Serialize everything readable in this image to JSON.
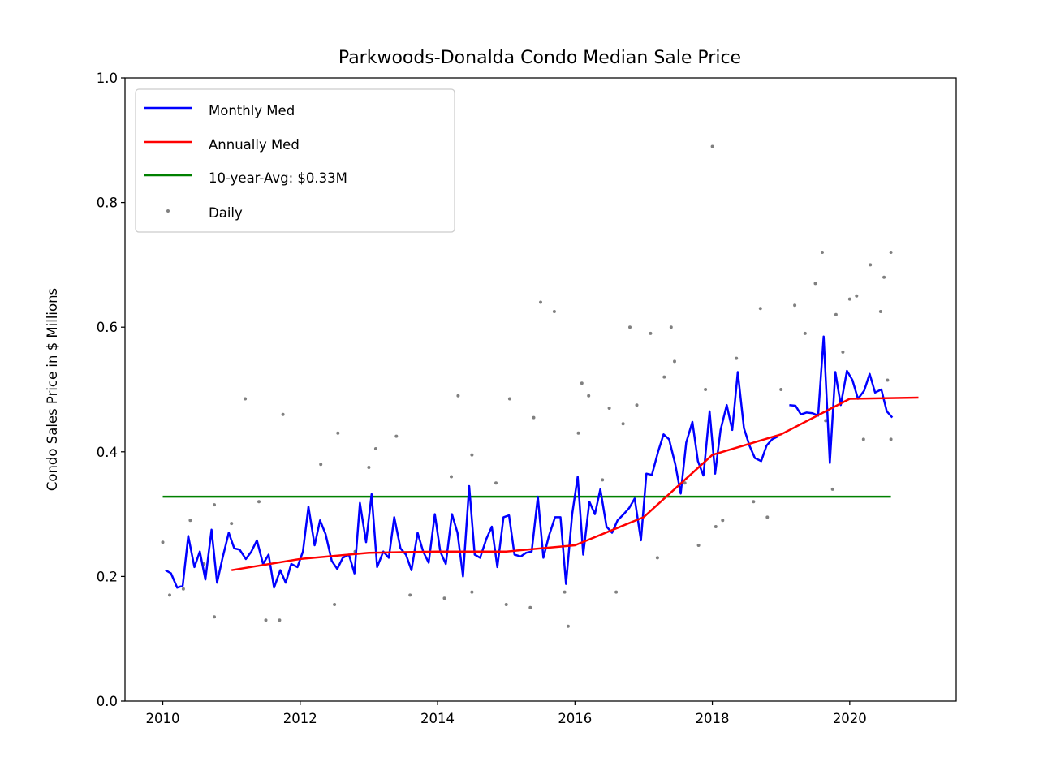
{
  "chart_data": {
    "type": "line",
    "title": "Parkwoods-Donalda Condo Median Sale Price",
    "xlabel": "",
    "ylabel": "Condo Sales Price in $ Millions",
    "xlim": [
      2009.45,
      2021.55
    ],
    "ylim": [
      0.0,
      1.0
    ],
    "x_ticks": [
      2010,
      2012,
      2014,
      2016,
      2018,
      2020
    ],
    "y_ticks": [
      0.0,
      0.2,
      0.4,
      0.6,
      0.8,
      1.0
    ],
    "y_tick_labels": [
      "0.0",
      "0.2",
      "0.4",
      "0.6",
      "0.8",
      "1.0"
    ],
    "legend_position": "top-left",
    "grid": false,
    "series": [
      {
        "name": "Monthly Med",
        "kind": "line",
        "color": "#0000ff",
        "x": [
          2010.04,
          2010.12,
          2010.21,
          2010.29,
          2010.37,
          2010.46,
          2010.54,
          2010.62,
          2010.71,
          2010.79,
          2010.87,
          2010.96,
          2011.04,
          2011.12,
          2011.21,
          2011.29,
          2011.37,
          2011.46,
          2011.54,
          2011.62,
          2011.71,
          2011.79,
          2011.87,
          2011.96,
          2012.04,
          2012.12,
          2012.21,
          2012.29,
          2012.37,
          2012.46,
          2012.54,
          2012.62,
          2012.71,
          2012.79,
          2012.87,
          2012.96,
          2013.04,
          2013.12,
          2013.21,
          2013.29,
          2013.37,
          2013.46,
          2013.54,
          2013.62,
          2013.71,
          2013.79,
          2013.87,
          2013.96,
          2014.04,
          2014.12,
          2014.21,
          2014.29,
          2014.37,
          2014.46,
          2014.54,
          2014.62,
          2014.71,
          2014.79,
          2014.87,
          2014.96,
          2015.04,
          2015.12,
          2015.21,
          2015.29,
          2015.37,
          2015.46,
          2015.54,
          2015.62,
          2015.71,
          2015.79,
          2015.87,
          2015.96,
          2016.04,
          2016.12,
          2016.21,
          2016.29,
          2016.37,
          2016.46,
          2016.54,
          2016.62,
          2016.71,
          2016.79,
          2016.87,
          2016.96,
          2017.04,
          2017.12,
          2017.21,
          2017.29,
          2017.37,
          2017.46,
          2017.54,
          2017.62,
          2017.71,
          2017.79,
          2017.87,
          2017.96,
          2018.04,
          2018.12,
          2018.21,
          2018.29,
          2018.37,
          2018.46,
          2018.54,
          2018.62,
          2018.71,
          2018.79,
          2018.87,
          2018.96,
          2019.04,
          2019.12,
          2019.21,
          2019.29,
          2019.37,
          2019.46,
          2019.54,
          2019.62,
          2019.71,
          2019.79,
          2019.87,
          2019.96,
          2020.04,
          2020.12,
          2020.21,
          2020.29,
          2020.37,
          2020.46,
          2020.54,
          2020.62
        ],
        "values": [
          0.21,
          0.205,
          0.182,
          0.185,
          0.265,
          0.215,
          0.24,
          0.195,
          0.275,
          0.19,
          0.23,
          0.27,
          0.245,
          0.243,
          0.228,
          0.24,
          0.258,
          0.22,
          0.235,
          0.182,
          0.21,
          0.19,
          0.22,
          0.215,
          0.24,
          0.312,
          0.25,
          0.29,
          0.268,
          0.225,
          0.212,
          0.23,
          0.235,
          0.205,
          0.318,
          0.255,
          0.332,
          0.215,
          0.24,
          0.23,
          0.295,
          0.245,
          0.235,
          0.21,
          0.27,
          0.24,
          0.222,
          0.3,
          0.24,
          0.22,
          0.3,
          0.27,
          0.2,
          0.345,
          0.235,
          0.23,
          0.26,
          0.28,
          0.215,
          0.295,
          0.298,
          0.235,
          0.232,
          0.238,
          0.24,
          0.328,
          0.23,
          0.265,
          0.295,
          0.295,
          0.188,
          0.3,
          0.36,
          0.235,
          0.32,
          0.3,
          0.34,
          0.28,
          0.27,
          0.29,
          0.3,
          0.31,
          0.325,
          0.258,
          0.365,
          0.363,
          0.4,
          0.428,
          0.42,
          0.38,
          0.333,
          0.415,
          0.448,
          0.385,
          0.362,
          0.465,
          0.365,
          0.435,
          0.475,
          0.435,
          0.528,
          0.438,
          0.41,
          0.39,
          0.385,
          0.41,
          0.42,
          0.425,
          null,
          0.475,
          0.474,
          0.46,
          0.463,
          0.462,
          0.458,
          0.585,
          0.382,
          0.528,
          0.475,
          0.53,
          0.515,
          0.485,
          0.498,
          0.525,
          0.495,
          0.5,
          0.465,
          0.455
        ]
      },
      {
        "name": "Annually Med",
        "kind": "line",
        "color": "#ff0000",
        "x": [
          2011.0,
          2012.0,
          2013.0,
          2014.0,
          2015.0,
          2016.0,
          2017.0,
          2018.0,
          2019.0,
          2020.0,
          2021.0
        ],
        "values": [
          0.21,
          0.228,
          0.238,
          0.24,
          0.24,
          0.25,
          0.295,
          0.395,
          0.428,
          0.485,
          0.487
        ]
      },
      {
        "name": "10-year-Avg: $0.33M",
        "kind": "line",
        "color": "#008000",
        "x": [
          2010.0,
          2020.6
        ],
        "values": [
          0.328,
          0.328
        ]
      },
      {
        "name": "Daily",
        "kind": "scatter",
        "color": "#808080",
        "points": [
          [
            2010.0,
            0.255
          ],
          [
            2010.1,
            0.17
          ],
          [
            2010.3,
            0.18
          ],
          [
            2010.4,
            0.29
          ],
          [
            2010.6,
            0.22
          ],
          [
            2010.75,
            0.315
          ],
          [
            2010.75,
            0.135
          ],
          [
            2011.0,
            0.285
          ],
          [
            2011.2,
            0.485
          ],
          [
            2011.4,
            0.32
          ],
          [
            2011.5,
            0.13
          ],
          [
            2011.7,
            0.13
          ],
          [
            2011.75,
            0.46
          ],
          [
            2012.3,
            0.38
          ],
          [
            2012.5,
            0.155
          ],
          [
            2012.55,
            0.43
          ],
          [
            2012.8,
            0.24
          ],
          [
            2013.0,
            0.375
          ],
          [
            2013.1,
            0.405
          ],
          [
            2013.4,
            0.425
          ],
          [
            2013.6,
            0.17
          ],
          [
            2014.1,
            0.165
          ],
          [
            2014.2,
            0.36
          ],
          [
            2014.3,
            0.49
          ],
          [
            2014.5,
            0.395
          ],
          [
            2014.5,
            0.175
          ],
          [
            2014.85,
            0.35
          ],
          [
            2015.0,
            0.155
          ],
          [
            2015.05,
            0.485
          ],
          [
            2015.35,
            0.15
          ],
          [
            2015.4,
            0.455
          ],
          [
            2015.5,
            0.64
          ],
          [
            2015.7,
            0.625
          ],
          [
            2015.85,
            0.175
          ],
          [
            2015.9,
            0.12
          ],
          [
            2016.05,
            0.43
          ],
          [
            2016.1,
            0.51
          ],
          [
            2016.2,
            0.49
          ],
          [
            2016.4,
            0.355
          ],
          [
            2016.5,
            0.47
          ],
          [
            2016.6,
            0.175
          ],
          [
            2016.7,
            0.445
          ],
          [
            2016.8,
            0.6
          ],
          [
            2016.9,
            0.475
          ],
          [
            2017.1,
            0.59
          ],
          [
            2017.2,
            0.23
          ],
          [
            2017.3,
            0.52
          ],
          [
            2017.4,
            0.6
          ],
          [
            2017.45,
            0.545
          ],
          [
            2017.6,
            0.35
          ],
          [
            2017.8,
            0.25
          ],
          [
            2017.9,
            0.5
          ],
          [
            2018.0,
            0.89
          ],
          [
            2018.05,
            0.28
          ],
          [
            2018.15,
            0.29
          ],
          [
            2018.35,
            0.55
          ],
          [
            2018.6,
            0.32
          ],
          [
            2018.7,
            0.63
          ],
          [
            2018.8,
            0.295
          ],
          [
            2019.0,
            0.5
          ],
          [
            2019.2,
            0.635
          ],
          [
            2019.35,
            0.59
          ],
          [
            2019.5,
            0.67
          ],
          [
            2019.6,
            0.72
          ],
          [
            2019.65,
            0.45
          ],
          [
            2019.75,
            0.34
          ],
          [
            2019.8,
            0.62
          ],
          [
            2019.9,
            0.56
          ],
          [
            2020.0,
            0.645
          ],
          [
            2020.1,
            0.65
          ],
          [
            2020.2,
            0.42
          ],
          [
            2020.3,
            0.7
          ],
          [
            2020.45,
            0.625
          ],
          [
            2020.5,
            0.68
          ],
          [
            2020.55,
            0.515
          ],
          [
            2020.6,
            0.72
          ],
          [
            2020.6,
            0.42
          ]
        ]
      }
    ]
  }
}
